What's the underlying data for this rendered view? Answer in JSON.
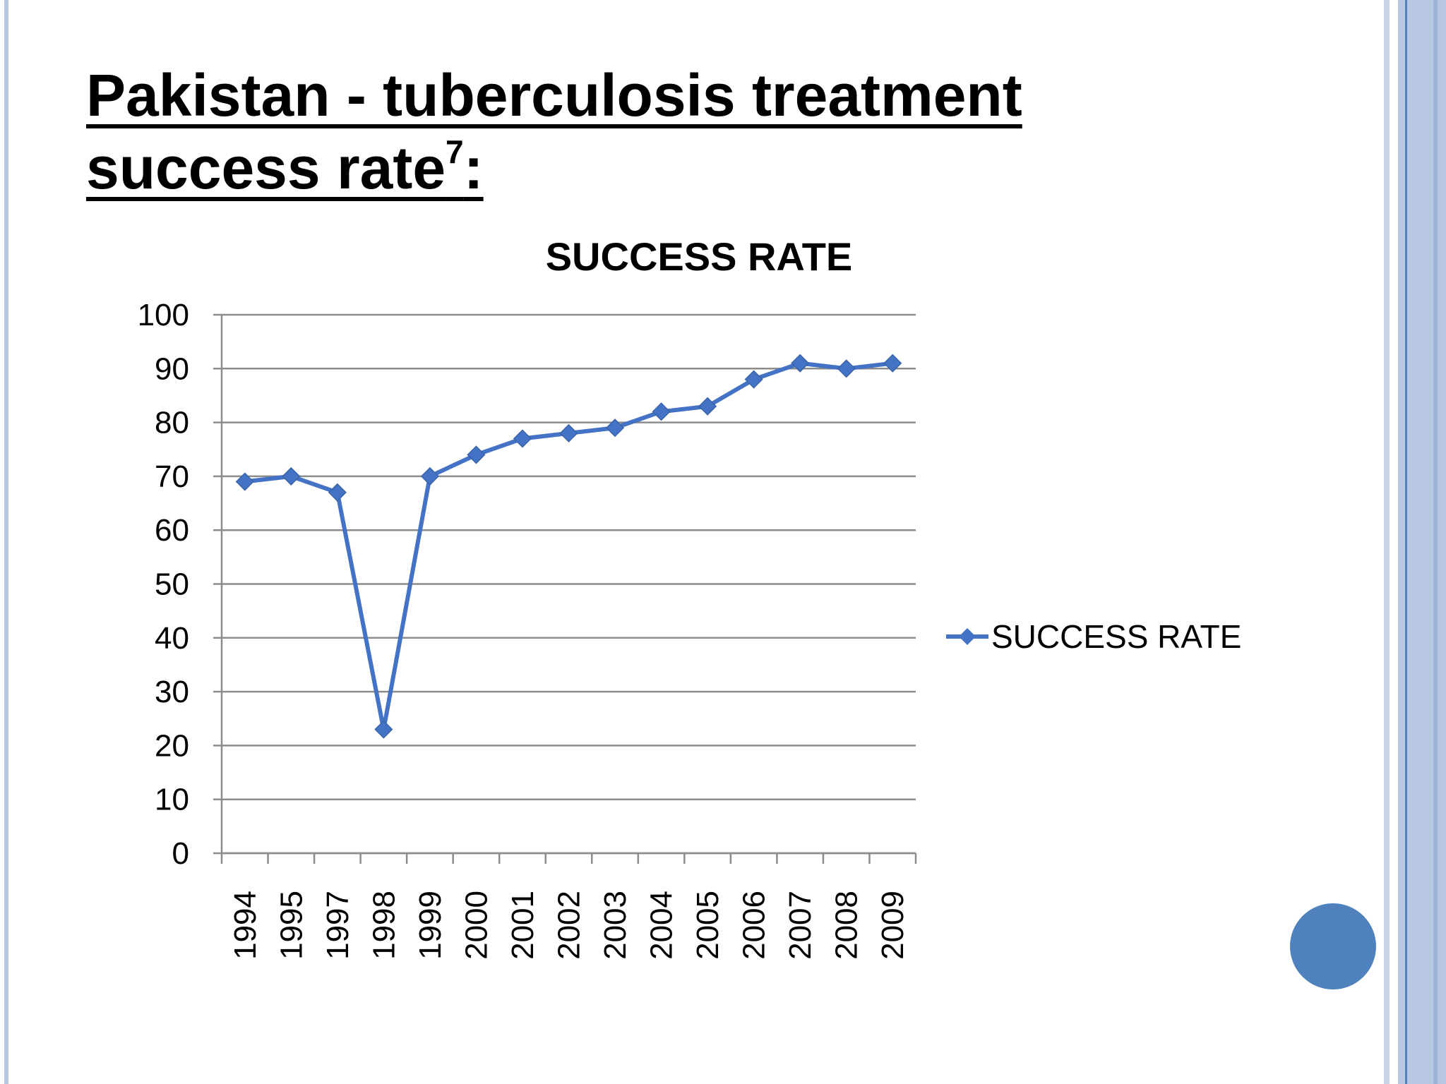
{
  "slide": {
    "title_line1": "Pakistan - tuberculosis treatment",
    "title_line2": "success rate",
    "title_sup": "7",
    "title_colon": ":",
    "accent_color": "#4f81bd"
  },
  "chart_data": {
    "type": "line",
    "title": "SUCCESS RATE",
    "categories": [
      "1994",
      "1995",
      "1997",
      "1998",
      "1999",
      "2000",
      "2001",
      "2002",
      "2003",
      "2004",
      "2005",
      "2006",
      "2007",
      "2008",
      "2009"
    ],
    "series": [
      {
        "name": "SUCCESS RATE",
        "color": "#4472c4",
        "marker": "diamond",
        "values": [
          69,
          70,
          67,
          23,
          70,
          74,
          77,
          78,
          79,
          82,
          83,
          88,
          91,
          90,
          91
        ]
      }
    ],
    "ylim": [
      0,
      100
    ],
    "yticks": [
      0,
      10,
      20,
      30,
      40,
      50,
      60,
      70,
      80,
      90,
      100
    ],
    "xlabel": "",
    "ylabel": "",
    "grid": true,
    "legend_position": "right"
  }
}
